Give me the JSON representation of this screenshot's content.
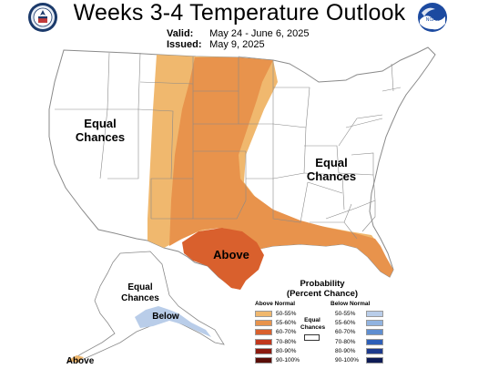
{
  "header": {
    "title": "Weeks 3-4 Temperature Outlook",
    "valid_label": "Valid:",
    "valid_value": "May 24 - June 6, 2025",
    "issued_label": "Issued:",
    "issued_value": "May 9, 2025",
    "noaa_logo_text": "NOAA"
  },
  "map_labels": {
    "west_equal": "Equal\nChances",
    "east_equal": "Equal\nChances",
    "texas_above": "Above",
    "alaska_equal": "Equal\nChances",
    "alaska_below": "Below",
    "alaska_above": "Above"
  },
  "legend": {
    "title_line1": "Probability",
    "title_line2": "(Percent Chance)",
    "above_head": "Above Normal",
    "below_head": "Below Normal",
    "equal_label": "Equal\nChances",
    "ranges": [
      "50-55%",
      "55-60%",
      "60-70%",
      "70-80%",
      "80-90%",
      "90-100%"
    ],
    "above_colors": [
      "#f0b86e",
      "#e8934c",
      "#d9602d",
      "#c0371c",
      "#8b1a0f",
      "#5a0e08"
    ],
    "below_colors": [
      "#b9cde9",
      "#91b3e0",
      "#5f8ed0",
      "#2e5fb8",
      "#1d3a8c",
      "#0e1b55"
    ]
  },
  "colors": {
    "above_50_55": "#f0b86e",
    "above_55_60": "#e8934c",
    "above_60_70": "#d9602d",
    "below_50_55": "#b9cde9",
    "border": "#8a8a8a"
  }
}
